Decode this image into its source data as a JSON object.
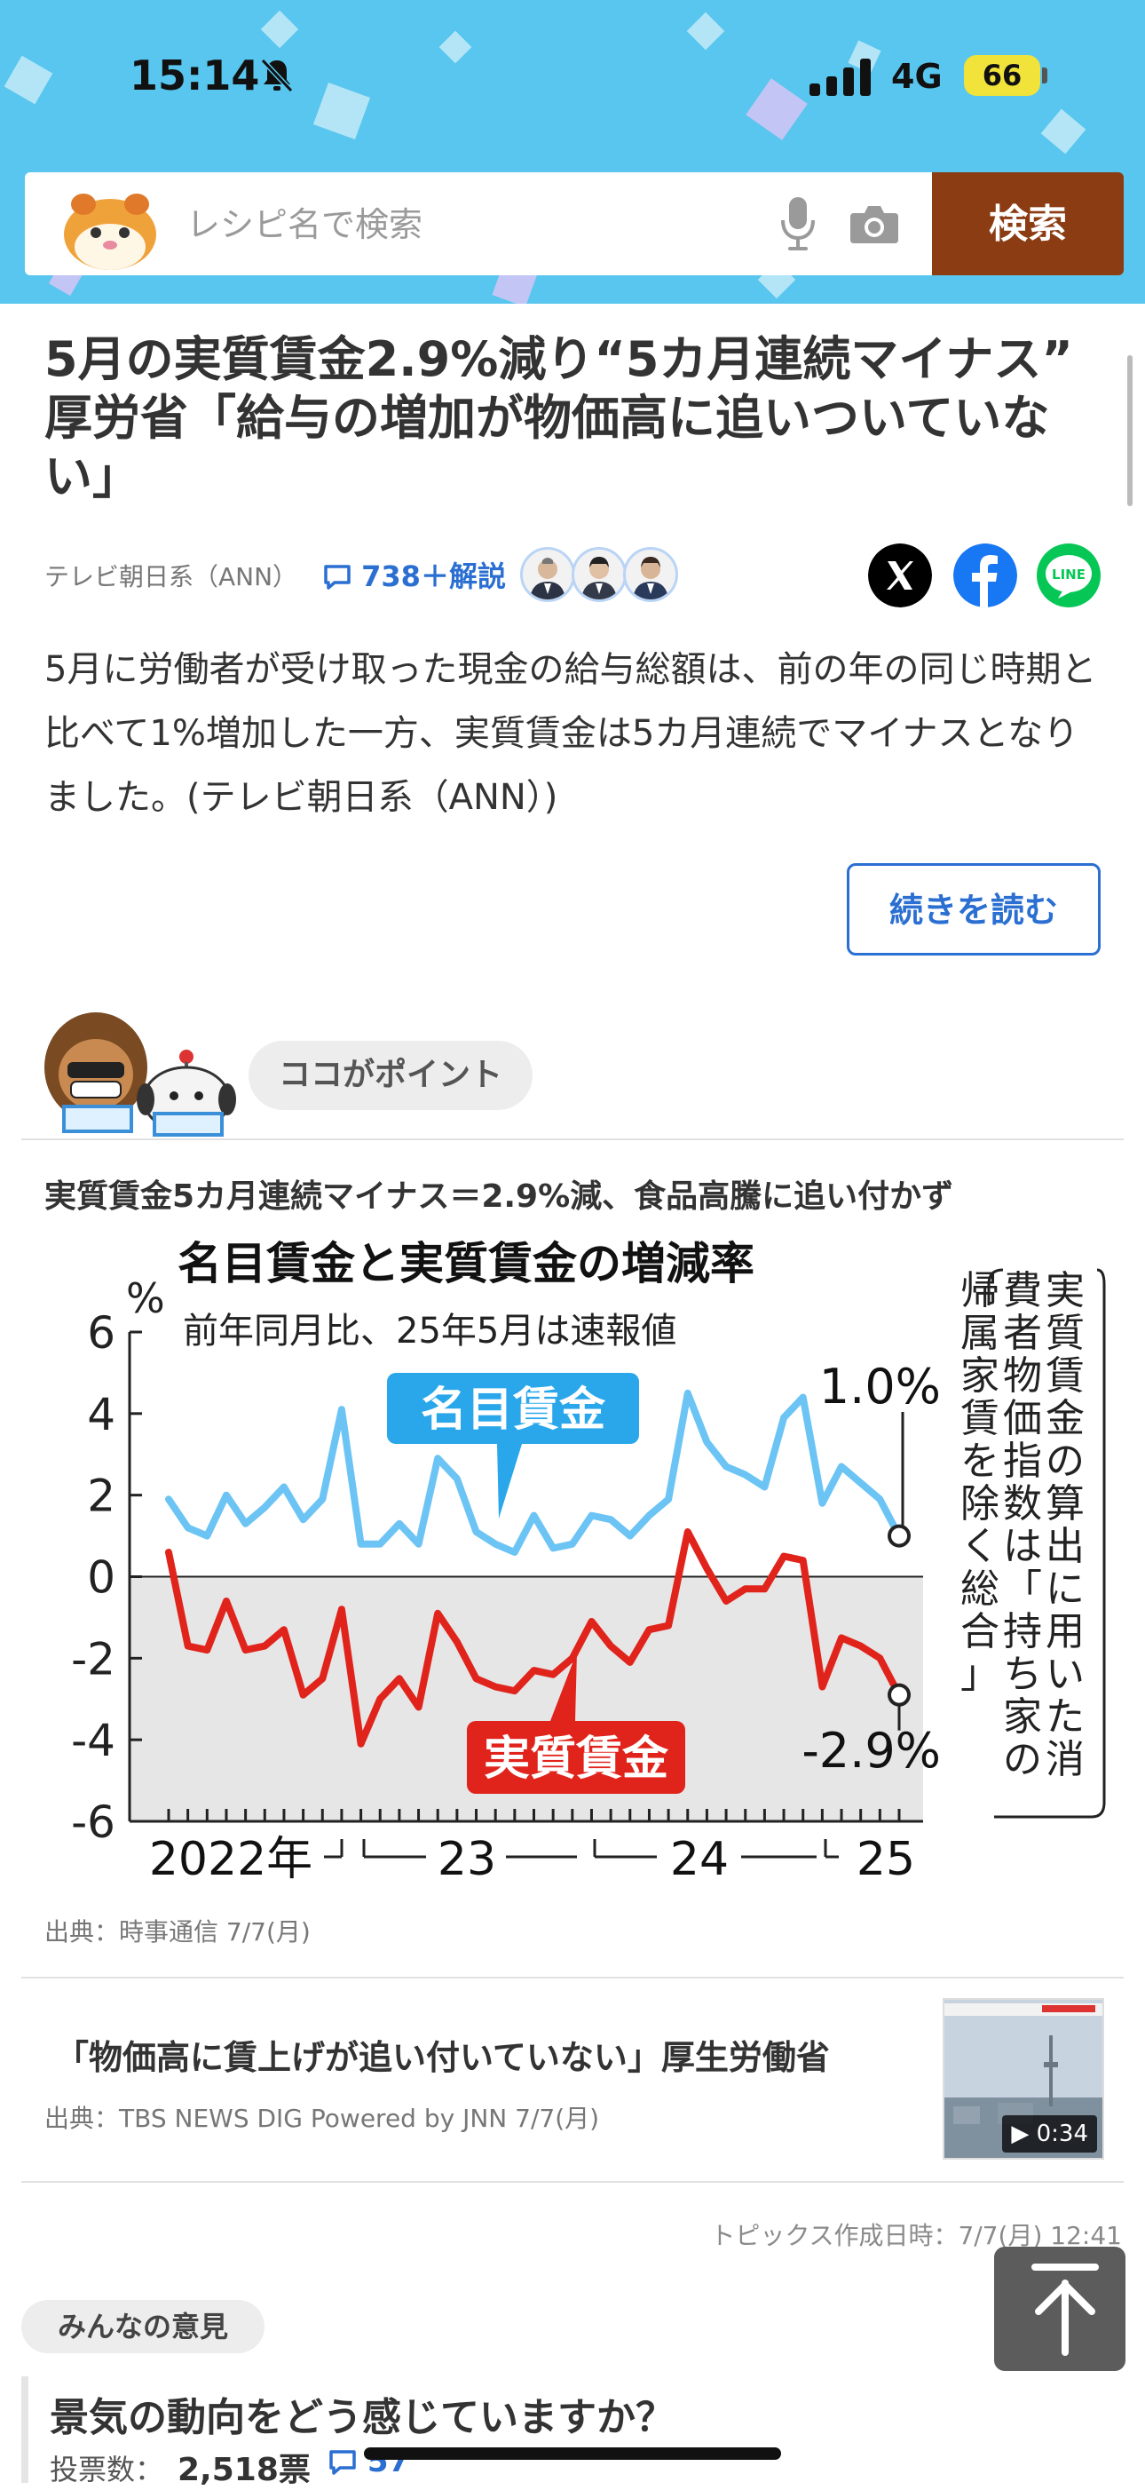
{
  "status_bar": {
    "time": "15:14",
    "network": "4G",
    "battery": "66"
  },
  "search": {
    "placeholder": "レシピ名で検索",
    "button_label": "検索"
  },
  "article": {
    "title": "5月の実質賃金2.9%減り“5カ月連続マイナス”　厚労省「給与の増加が物価高に追いついていない」",
    "source": "テレビ朝日系（ANN）",
    "comments": "738＋解説",
    "summary": "5月に労働者が受け取った現金の給与総額は、前の年の同じ時期と比べて1%増加した一方、実質賃金は5カ月連続でマイナスとなりました。(テレビ朝日系（ANN）)",
    "read_more": "続きを読む"
  },
  "point": {
    "label": "ココがポイント",
    "headline": "実質賃金5カ月連続マイナス＝2.9%減、食品高騰に追い付かず"
  },
  "chart_data": {
    "type": "line",
    "title": "名目賃金と実質賃金の増減率",
    "subtitle": "前年同月比、25年5月は速報値",
    "ylabel": "%",
    "ylim": [
      -6,
      6
    ],
    "yticks": [
      "6",
      "4",
      "2",
      "0",
      "-2",
      "-4",
      "-6"
    ],
    "xtick_labels": [
      "2022年",
      "23",
      "24",
      "25"
    ],
    "grid": false,
    "side_note": "実質賃金の算出に用いた消費者物価指数は「持ち家の帰属家賃を除く総合」",
    "series": [
      {
        "name": "名目賃金",
        "color": "#6cc4f4",
        "end_label": "1.0%",
        "values": [
          1.9,
          1.2,
          1.0,
          2.0,
          1.3,
          1.7,
          2.2,
          1.4,
          1.9,
          4.1,
          0.8,
          0.8,
          1.3,
          0.8,
          2.9,
          2.4,
          1.1,
          0.8,
          0.6,
          1.5,
          0.7,
          0.8,
          1.5,
          1.4,
          1.0,
          1.5,
          1.9,
          4.5,
          3.3,
          2.7,
          2.5,
          2.2,
          3.9,
          4.4,
          1.8,
          2.7,
          2.3,
          1.9,
          1.0
        ]
      },
      {
        "name": "実質賃金",
        "color": "#e0241c",
        "end_label": "-2.9%",
        "values": [
          0.6,
          -1.7,
          -1.8,
          -0.6,
          -1.8,
          -1.7,
          -1.3,
          -2.9,
          -2.5,
          -0.8,
          -4.1,
          -3.0,
          -2.5,
          -3.2,
          -0.9,
          -1.6,
          -2.5,
          -2.7,
          -2.8,
          -2.3,
          -2.4,
          -2.0,
          -1.1,
          -1.7,
          -2.1,
          -1.3,
          -1.2,
          1.1,
          0.2,
          -0.6,
          -0.3,
          -0.3,
          0.5,
          0.4,
          -2.7,
          -1.5,
          -1.7,
          -2.0,
          -2.9
        ]
      }
    ]
  },
  "chart_credit": "出典：時事通信 7/7(月)",
  "related": {
    "title": "「物価高に賃上げが追い付いていない」厚生労働省",
    "source": "出典：TBS NEWS DIG Powered by JNN 7/7(月)",
    "duration": "▶ 0:34"
  },
  "topics_created": "トピックス作成日時：7/7(月) 12:41",
  "opinion": {
    "label": "みんなの意見",
    "question": "景気の動向をどう感じていますか？",
    "votes_label": "投票数：",
    "votes": "2,518票",
    "comments": "57"
  },
  "colors": {
    "header_bg": "#58c6ee",
    "search_button": "#8b3c12",
    "link_blue": "#2a6fd1",
    "nominal": "#6cc4f4",
    "real": "#e0241c"
  },
  "icons": {
    "mute": "bell-slash-icon",
    "signal": "signal-bars-icon",
    "mascot": "hamster-mascot-icon",
    "mic": "mic-icon",
    "camera": "camera-icon",
    "comment": "speech-bubble-icon",
    "x": "x-logo-icon",
    "facebook": "facebook-logo-icon",
    "line": "line-logo-icon",
    "scroll_top": "arrow-up-icon"
  }
}
